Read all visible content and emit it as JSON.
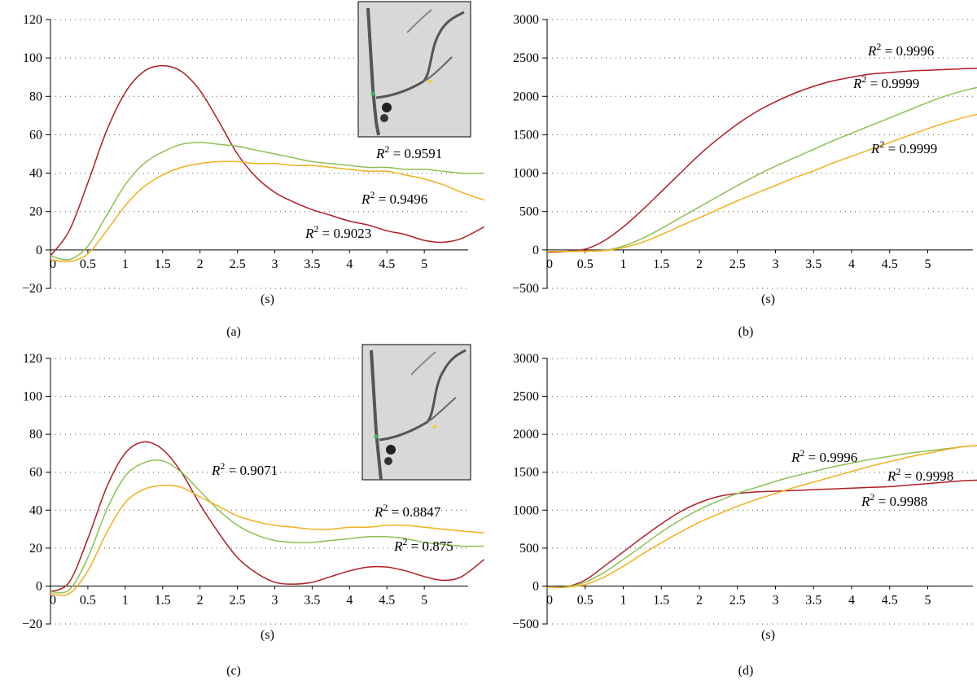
{
  "colors": {
    "red": "#b01e24",
    "green": "#8cc152",
    "orange": "#f2b01e"
  },
  "chart_data": [
    {
      "type": "line",
      "panel_label": "(a)",
      "xlabel": "(s)",
      "ylabel": "",
      "xlim": [
        0,
        6
      ],
      "ylim": [
        -20,
        120
      ],
      "xticks": [
        "0",
        "0.5",
        "1",
        "1.5",
        "2",
        "2.5",
        "3",
        "3.5",
        "4",
        "4.5",
        "5"
      ],
      "yticks": [
        "-20",
        "0",
        "20",
        "40",
        "60",
        "80",
        "100",
        "120"
      ],
      "grid": true,
      "inset_image": "angiogram-thumbnail",
      "x": [
        0,
        0.25,
        0.5,
        0.75,
        1,
        1.25,
        1.5,
        1.75,
        2,
        2.25,
        2.5,
        2.75,
        3,
        3.25,
        3.5,
        3.75,
        4,
        4.25,
        4.5,
        4.75,
        5,
        5.25,
        5.5,
        5.8
      ],
      "series": [
        {
          "color": "red",
          "values": [
            -3,
            10,
            35,
            62,
            82,
            93,
            96,
            93,
            83,
            67,
            50,
            38,
            30,
            25,
            21,
            18,
            15,
            13,
            10,
            8,
            5,
            4,
            6,
            12
          ]
        },
        {
          "color": "green",
          "values": [
            -3,
            -5,
            2,
            18,
            34,
            45,
            51,
            55,
            56,
            55,
            54,
            52,
            50,
            48,
            46,
            45,
            44,
            43,
            43,
            42,
            42,
            41,
            40,
            40
          ]
        },
        {
          "color": "orange",
          "values": [
            -5,
            -6,
            -2,
            10,
            23,
            33,
            39,
            43,
            45,
            46,
            46,
            45,
            45,
            44,
            44,
            43,
            42,
            41,
            41,
            39,
            37,
            34,
            30,
            26
          ]
        }
      ],
      "annotations": [
        "R² = 0.9591",
        "R² = 0.9496",
        "R² = 0.9023"
      ]
    },
    {
      "type": "line",
      "panel_label": "(b)",
      "xlabel": "(s)",
      "ylabel": "",
      "xlim": [
        0,
        6
      ],
      "ylim": [
        -500,
        3000
      ],
      "xticks": [
        "0",
        "0.5",
        "1",
        "1.5",
        "2",
        "2.5",
        "3",
        "3.5",
        "4",
        "4.5",
        "5"
      ],
      "yticks": [
        "-500",
        "0",
        "500",
        "1000",
        "1500",
        "2000",
        "2500",
        "3000"
      ],
      "grid": true,
      "x": [
        0,
        0.25,
        0.5,
        0.75,
        1,
        1.25,
        1.5,
        1.75,
        2,
        2.25,
        2.5,
        2.75,
        3,
        3.25,
        3.5,
        3.75,
        4,
        4.25,
        4.5,
        4.75,
        5,
        5.25,
        5.5,
        5.8
      ],
      "series": [
        {
          "color": "red",
          "values": [
            -30,
            -20,
            10,
            120,
            300,
            520,
            760,
            1000,
            1240,
            1450,
            1640,
            1800,
            1930,
            2040,
            2130,
            2200,
            2250,
            2290,
            2310,
            2330,
            2340,
            2350,
            2360,
            2370
          ]
        },
        {
          "color": "green",
          "values": [
            -20,
            -20,
            -15,
            -5,
            50,
            150,
            280,
            420,
            560,
            700,
            840,
            970,
            1090,
            1200,
            1310,
            1420,
            1520,
            1620,
            1720,
            1820,
            1920,
            2010,
            2080,
            2150
          ]
        },
        {
          "color": "orange",
          "values": [
            -20,
            -20,
            -15,
            -10,
            30,
            100,
            200,
            310,
            420,
            530,
            640,
            740,
            840,
            940,
            1030,
            1130,
            1220,
            1310,
            1400,
            1490,
            1580,
            1660,
            1730,
            1800
          ]
        }
      ],
      "annotations": [
        "R² = 0.9996",
        "R² = 0.9999",
        "R² = 0.9999"
      ]
    },
    {
      "type": "line",
      "panel_label": "(c)",
      "xlabel": "(s)",
      "ylabel": "",
      "xlim": [
        0,
        6
      ],
      "ylim": [
        -20,
        120
      ],
      "xticks": [
        "0",
        "0.5",
        "1",
        "1.5",
        "2",
        "2.5",
        "3",
        "3.5",
        "4",
        "4.5",
        "5"
      ],
      "yticks": [
        "-20",
        "0",
        "20",
        "40",
        "60",
        "80",
        "100",
        "120"
      ],
      "grid": true,
      "inset_image": "angiogram-thumbnail",
      "x": [
        0,
        0.25,
        0.5,
        0.75,
        1,
        1.25,
        1.5,
        1.75,
        2,
        2.25,
        2.5,
        2.75,
        3,
        3.25,
        3.5,
        3.75,
        4,
        4.25,
        4.5,
        4.75,
        5,
        5.25,
        5.5,
        5.8
      ],
      "series": [
        {
          "color": "red",
          "values": [
            -3,
            2,
            25,
            52,
            70,
            76,
            72,
            60,
            43,
            28,
            15,
            7,
            2,
            1,
            2,
            5,
            8,
            10,
            10,
            8,
            5,
            3,
            5,
            14
          ]
        },
        {
          "color": "green",
          "values": [
            -3,
            -2,
            15,
            40,
            58,
            65,
            66,
            60,
            50,
            40,
            32,
            27,
            24,
            23,
            23,
            24,
            25,
            26,
            26,
            25,
            23,
            22,
            21,
            21
          ]
        },
        {
          "color": "orange",
          "values": [
            -4,
            -4,
            8,
            28,
            44,
            51,
            53,
            52,
            47,
            42,
            37,
            34,
            32,
            31,
            30,
            30,
            31,
            31,
            32,
            32,
            31,
            30,
            29,
            28
          ]
        }
      ],
      "annotations": [
        "R² = 0.9071",
        "R² = 0.8847",
        "R² = 0.875"
      ]
    },
    {
      "type": "line",
      "panel_label": "(d)",
      "xlabel": "(s)",
      "ylabel": "",
      "xlim": [
        0,
        6
      ],
      "ylim": [
        -500,
        3000
      ],
      "xticks": [
        "0",
        "0.5",
        "1",
        "1.5",
        "2",
        "2.5",
        "3",
        "3.5",
        "4",
        "4.5",
        "5"
      ],
      "yticks": [
        "-500",
        "0",
        "500",
        "1000",
        "1500",
        "2000",
        "2500",
        "3000"
      ],
      "grid": true,
      "x": [
        0,
        0.25,
        0.5,
        0.75,
        1,
        1.25,
        1.5,
        1.75,
        2,
        2.25,
        2.5,
        2.75,
        3,
        3.25,
        3.5,
        3.75,
        4,
        4.25,
        4.5,
        4.75,
        5,
        5.25,
        5.5,
        5.8
      ],
      "series": [
        {
          "color": "red",
          "values": [
            -20,
            -10,
            80,
            260,
            450,
            640,
            820,
            980,
            1100,
            1180,
            1220,
            1240,
            1250,
            1260,
            1270,
            1280,
            1290,
            1300,
            1310,
            1330,
            1350,
            1370,
            1390,
            1400
          ]
        },
        {
          "color": "green",
          "values": [
            -20,
            -10,
            50,
            180,
            350,
            530,
            710,
            870,
            1010,
            1120,
            1220,
            1300,
            1380,
            1450,
            1510,
            1570,
            1620,
            1670,
            1710,
            1750,
            1780,
            1810,
            1840,
            1860
          ]
        },
        {
          "color": "orange",
          "values": [
            -20,
            -15,
            20,
            120,
            260,
            420,
            570,
            710,
            840,
            950,
            1050,
            1140,
            1220,
            1300,
            1370,
            1440,
            1510,
            1580,
            1640,
            1700,
            1750,
            1800,
            1840,
            1860
          ]
        }
      ],
      "annotations": [
        "R² = 0.9996",
        "R² = 0.9998",
        "R² = 0.9988"
      ]
    }
  ]
}
